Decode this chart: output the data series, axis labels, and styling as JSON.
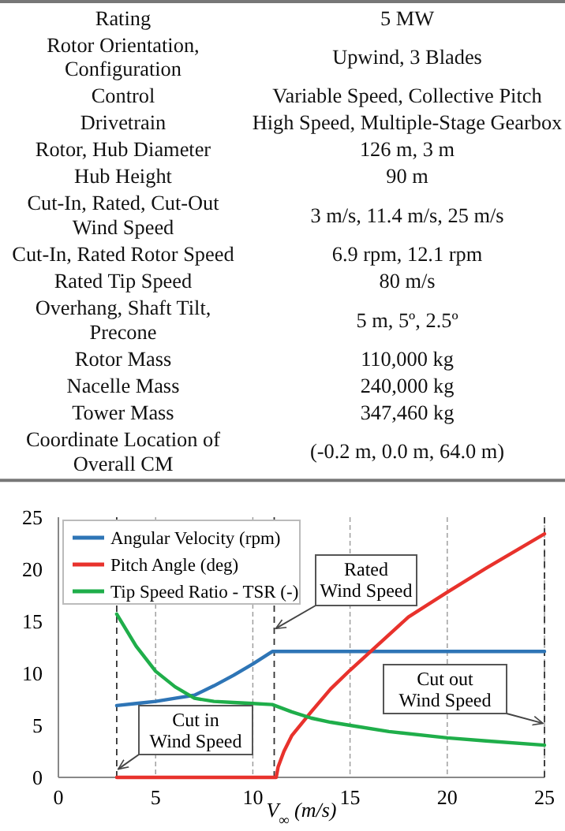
{
  "chart_data": [
    {
      "type": "other",
      "categories": [
        "Rating",
        "Rotor Orientation, Configuration",
        "Control",
        "Drivetrain",
        "Rotor, Hub Diameter",
        "Hub Height",
        "Cut-In, Rated, Cut-Out Wind Speed",
        "Cut-In, Rated Rotor Speed",
        "Rated Tip Speed",
        "Overhang, Shaft Tilt, Precone",
        "Rotor Mass",
        "Nacelle Mass",
        "Tower Mass",
        "Coordinate Location of Overall CM"
      ],
      "annotations": [
        "5 MW",
        "Upwind, 3 Blades",
        "Variable Speed, Collective Pitch",
        "High Speed, Multiple-Stage Gearbox",
        "126 m, 3 m",
        "90 m",
        "3 m/s, 11.4 m/s, 25 m/s",
        "6.9 rpm, 12.1 rpm",
        "80 m/s",
        "5 m, 5º, 2.5º",
        "110,000 kg",
        "240,000 kg",
        "347,460 kg",
        "(-0.2 m, 0.0 m, 64.0 m)"
      ]
    },
    {
      "type": "line",
      "xlabel": "V$_{∞}$ (m/s)",
      "xlim": [
        0,
        25
      ],
      "ylim": [
        0,
        25
      ],
      "xticks": [
        0,
        5,
        10,
        15,
        20,
        25
      ],
      "yticks": [
        0,
        5,
        10,
        15,
        20,
        25
      ],
      "grid": "x",
      "legend": "top left",
      "series": [
        {
          "name": "Angular Velocity (rpm)",
          "color": "#2e75b6",
          "x": [
            3,
            4,
            5,
            6,
            7,
            8,
            9,
            10,
            11,
            25
          ],
          "values": [
            6.9,
            7.1,
            7.3,
            7.6,
            7.9,
            8.8,
            9.8,
            10.9,
            12.1,
            12.1
          ]
        },
        {
          "name": "Pitch Angle (deg)",
          "color": "#e8322c",
          "x": [
            3,
            11.2,
            11.3,
            11.6,
            12,
            13,
            14,
            15,
            16,
            18,
            20,
            22,
            25
          ],
          "values": [
            0,
            0,
            1,
            2.5,
            4,
            6.3,
            8.5,
            10.3,
            12,
            15.4,
            17.8,
            20.1,
            23.4
          ]
        },
        {
          "name": "Tip Speed Ratio - TSR (-)",
          "color": "#1fae4a",
          "x": [
            3,
            4,
            5,
            6,
            7,
            8,
            9,
            10,
            11,
            12,
            13,
            14,
            15,
            17,
            20,
            22,
            25
          ],
          "values": [
            15.7,
            12.6,
            10.2,
            8.7,
            7.6,
            7.3,
            7.2,
            7.1,
            7.0,
            6.3,
            5.7,
            5.3,
            5.0,
            4.4,
            3.8,
            3.5,
            3.1
          ]
        }
      ],
      "ref_lines": [
        {
          "axis": "x",
          "value": 3,
          "label": "Cut in\nWind Speed",
          "line_style": "dashed"
        },
        {
          "axis": "x",
          "value": 11.1,
          "label": "Rated\nWind Speed",
          "line_style": "dashed"
        },
        {
          "axis": "x",
          "value": 25,
          "label": "Cut out\nWind Speed",
          "line_style": "dashed"
        }
      ]
    }
  ]
}
